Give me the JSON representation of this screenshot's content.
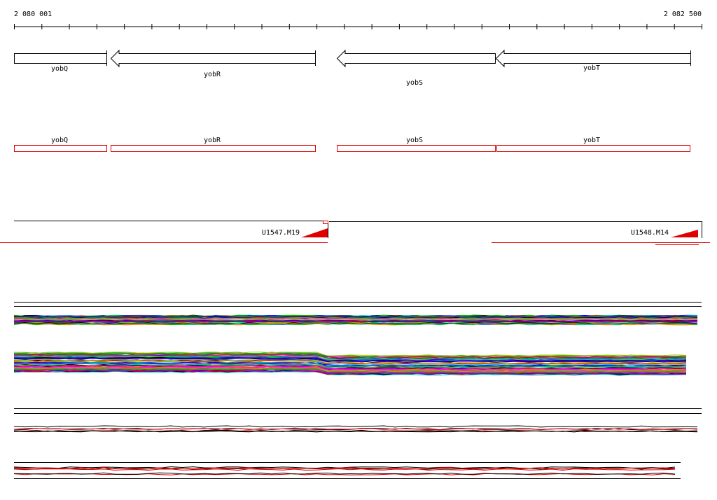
{
  "ruler": {
    "start": "2 080 001",
    "end": "2 082 500"
  },
  "genes": [
    {
      "label": "yobQ"
    },
    {
      "label": "yobR"
    },
    {
      "label": "yobS"
    },
    {
      "label": "yobT"
    }
  ],
  "cds": [
    {
      "label": "yobQ"
    },
    {
      "label": "yobR"
    },
    {
      "label": "yobS"
    },
    {
      "label": "yobT"
    }
  ],
  "probes": [
    {
      "label": "U1547.M19"
    },
    {
      "label": "U1548.M14"
    }
  ]
}
